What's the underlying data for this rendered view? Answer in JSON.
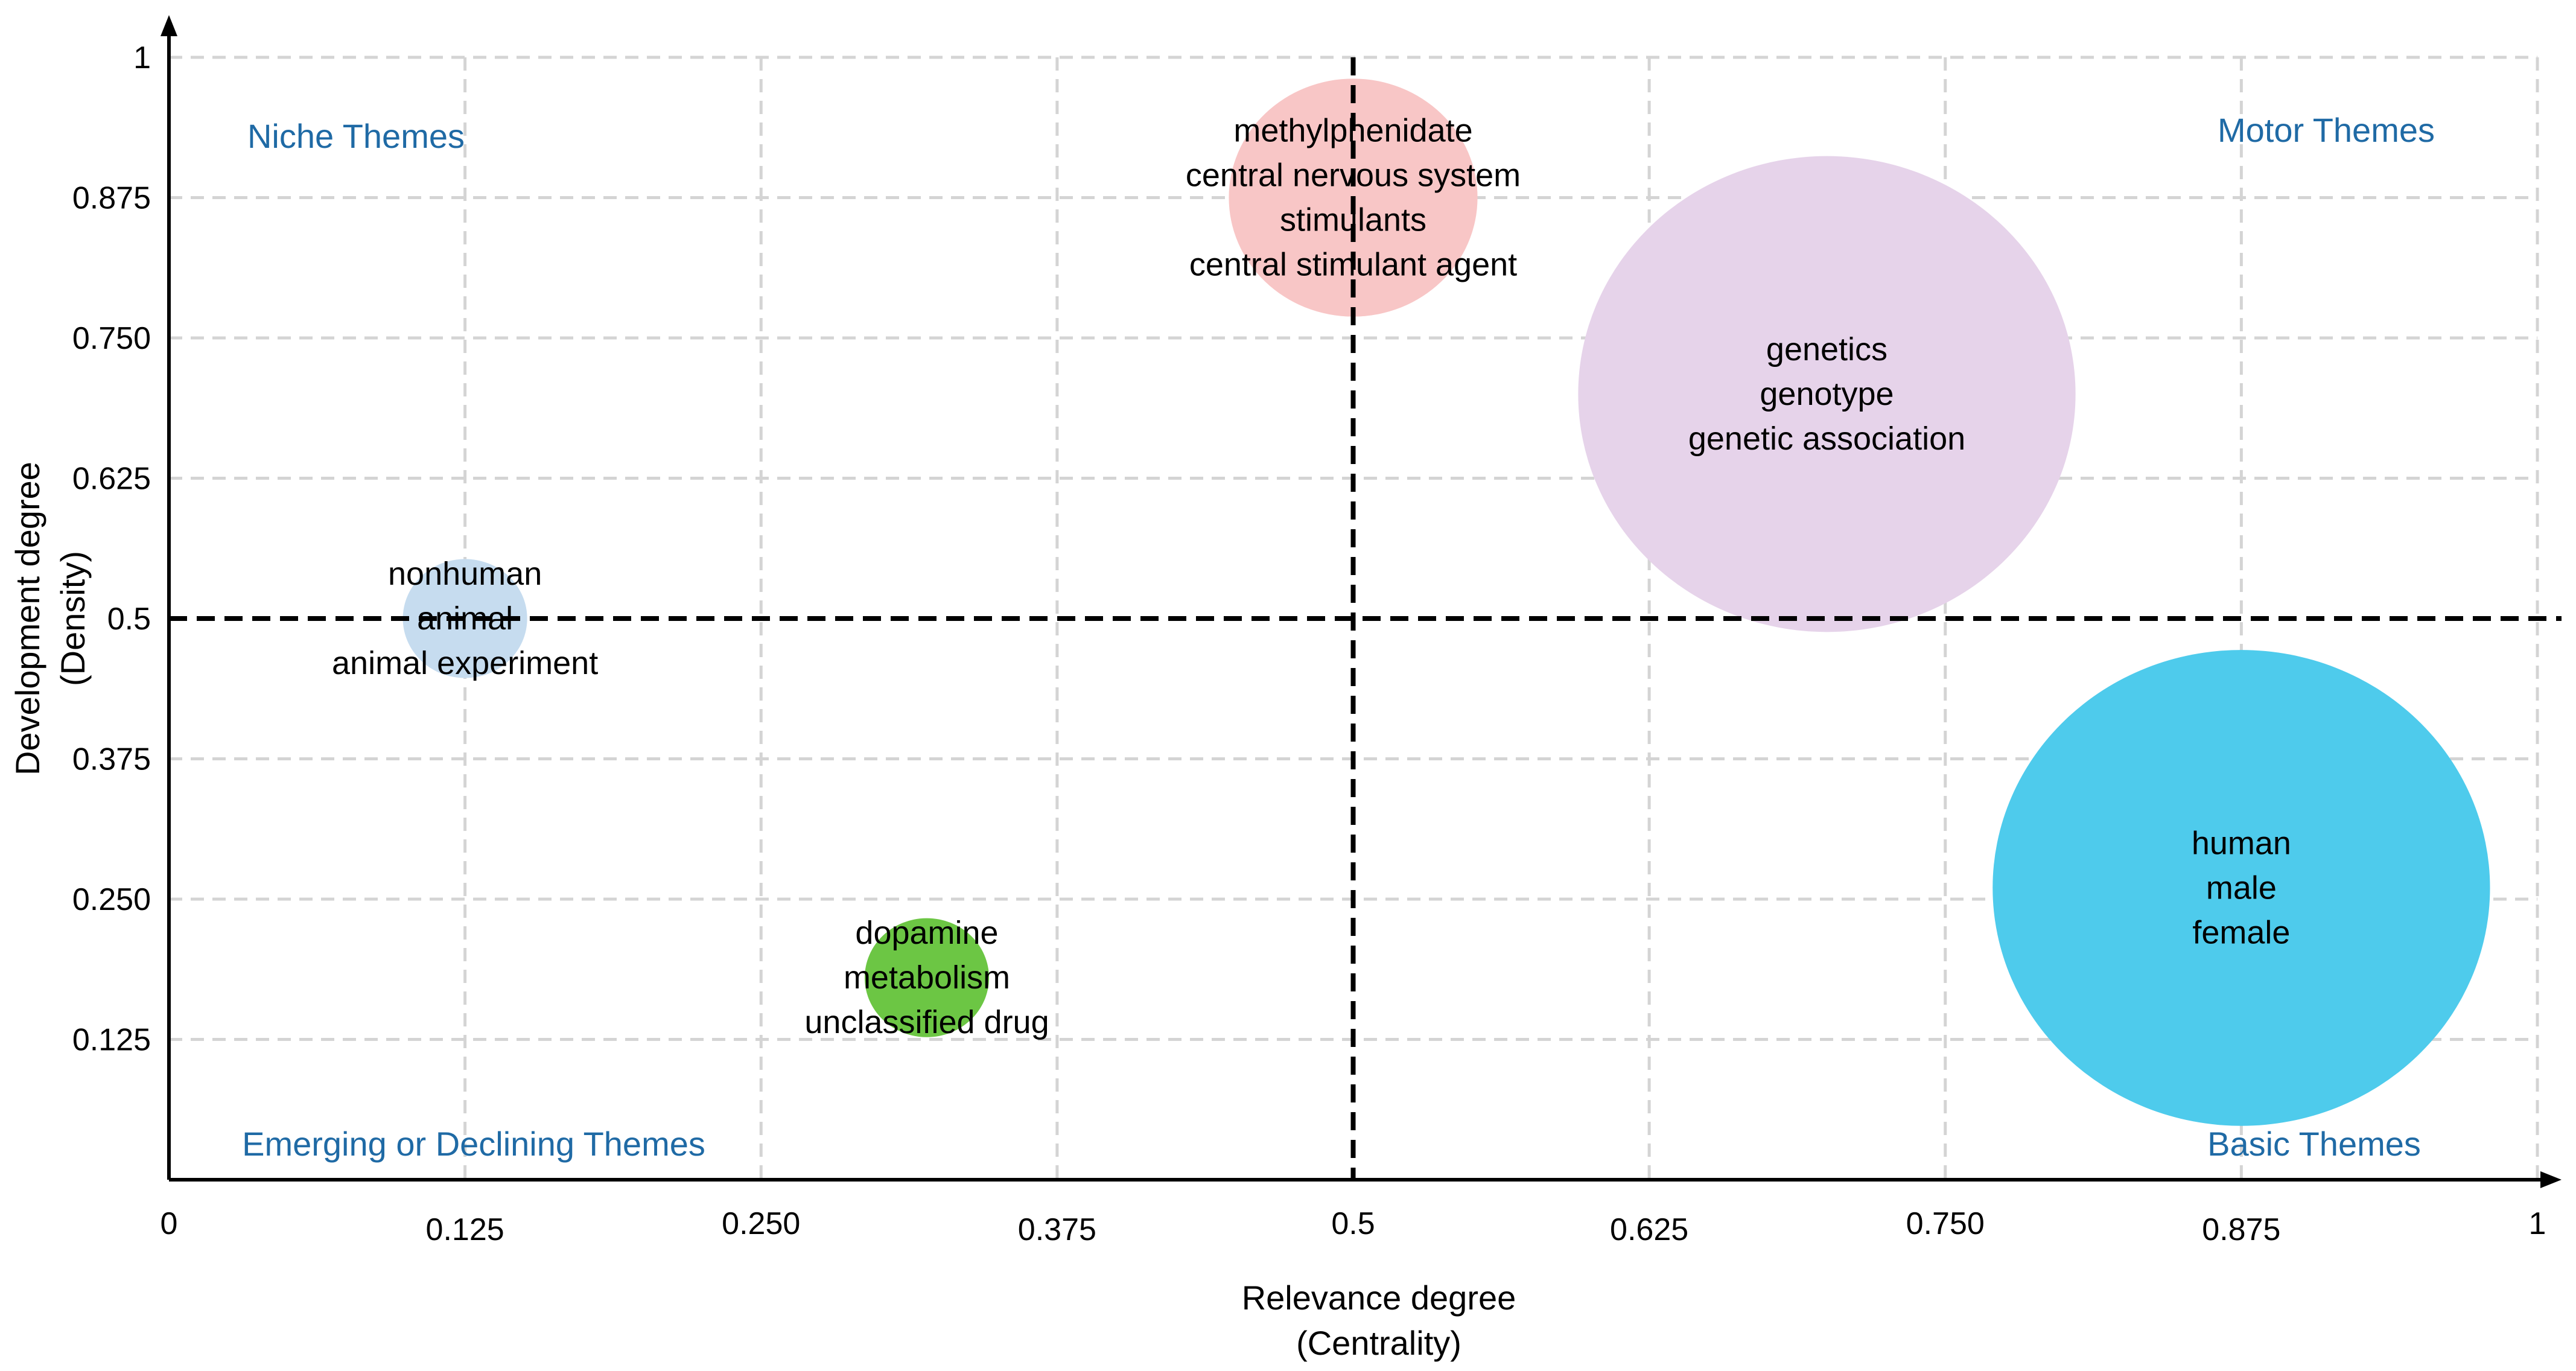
{
  "chart_data": {
    "type": "scatter",
    "subtype": "strategic-diagram",
    "xlabel": [
      "Relevance degree",
      "(Centrality)"
    ],
    "ylabel": [
      "Development degree",
      "(Density)"
    ],
    "xlim": [
      0,
      1
    ],
    "ylim": [
      0,
      1
    ],
    "x_ticks": [
      {
        "value": 0,
        "label": "0"
      },
      {
        "value": 0.125,
        "label": "0.125"
      },
      {
        "value": 0.25,
        "label": "0.250"
      },
      {
        "value": 0.375,
        "label": "0.375"
      },
      {
        "value": 0.5,
        "label": "0.5"
      },
      {
        "value": 0.625,
        "label": "0.625"
      },
      {
        "value": 0.75,
        "label": "0.750"
      },
      {
        "value": 0.875,
        "label": "0.875"
      },
      {
        "value": 1,
        "label": "1"
      }
    ],
    "y_ticks": [
      {
        "value": 0.125,
        "label": "0.125"
      },
      {
        "value": 0.25,
        "label": "0.250"
      },
      {
        "value": 0.375,
        "label": "0.375"
      },
      {
        "value": 0.5,
        "label": "0.5"
      },
      {
        "value": 0.625,
        "label": "0.625"
      },
      {
        "value": 0.75,
        "label": "0.750"
      },
      {
        "value": 0.875,
        "label": "0.875"
      },
      {
        "value": 1,
        "label": "1"
      }
    ],
    "grid": true,
    "divider_x": 0.5,
    "divider_y": 0.5,
    "quadrant_labels": [
      {
        "text": "Niche Themes",
        "position": "top-left"
      },
      {
        "text": "Motor Themes",
        "position": "top-right"
      },
      {
        "text": "Emerging or Declining Themes",
        "position": "bottom-left"
      },
      {
        "text": "Basic Themes",
        "position": "bottom-right"
      }
    ],
    "quadrant_color": "#1f6aa5",
    "series": [
      {
        "name": "cluster-methylphenidate",
        "x": 0.5,
        "y": 0.875,
        "size": 0.05,
        "color": "#f8c6c6",
        "labels": [
          "methylphenidate",
          "central nervous system",
          "stimulants",
          "central stimulant agent"
        ]
      },
      {
        "name": "cluster-genetics",
        "x": 0.7,
        "y": 0.7,
        "size": 0.1,
        "color": "#e6d3ea",
        "labels": [
          "genetics",
          "genotype",
          "genetic association"
        ]
      },
      {
        "name": "cluster-nonhuman",
        "x": 0.125,
        "y": 0.5,
        "size": 0.025,
        "color": "#c6dcef",
        "labels": [
          "nonhuman",
          "animal",
          "animal experiment"
        ]
      },
      {
        "name": "cluster-dopamine",
        "x": 0.32,
        "y": 0.18,
        "size": 0.025,
        "color": "#6cc644",
        "labels": [
          "dopamine",
          "metabolism",
          "unclassified drug"
        ]
      },
      {
        "name": "cluster-human",
        "x": 0.875,
        "y": 0.26,
        "size": 0.1,
        "color": "#4ecbec",
        "labels": [
          "human",
          "male",
          "female"
        ]
      }
    ]
  }
}
